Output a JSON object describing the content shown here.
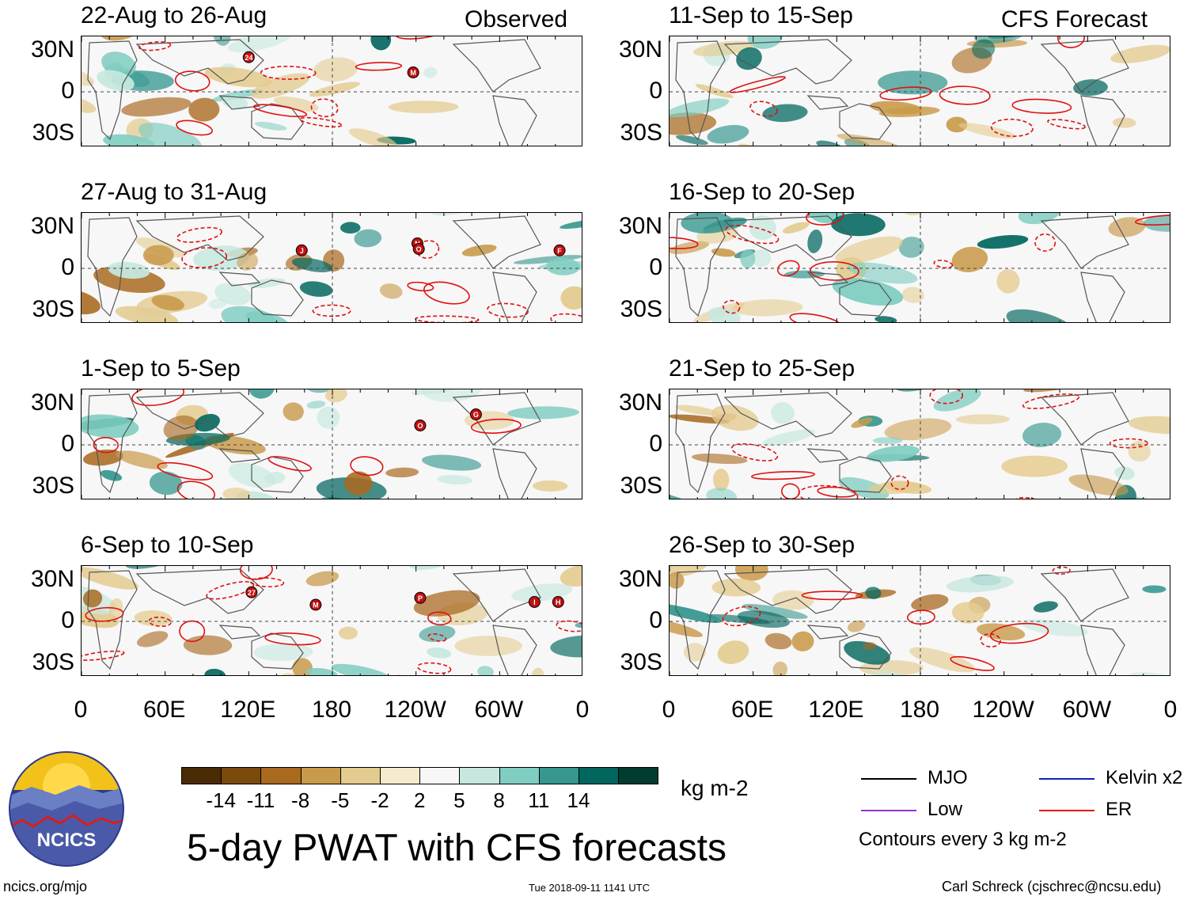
{
  "chart_data": {
    "type": "heatmap",
    "title": "5-day PWAT with CFS forecasts",
    "units": "kg m-2",
    "colorbar": {
      "ticks": [
        "-14",
        "-11",
        "-8",
        "-5",
        "-2",
        "2",
        "5",
        "8",
        "11",
        "14"
      ],
      "colors": [
        "#4a2b05",
        "#7a4a0c",
        "#a9691f",
        "#c99a4b",
        "#e4cb8f",
        "#f6ebcd",
        "#f7f7f7",
        "#c6e8df",
        "#80cdc1",
        "#35978f",
        "#01665e",
        "#003c30"
      ]
    },
    "lat_labels": [
      "30N",
      "0",
      "30S"
    ],
    "lon_labels": [
      "0",
      "60E",
      "120E",
      "180",
      "120W",
      "60W",
      "0"
    ],
    "headers": {
      "left": "Observed",
      "right": "CFS Forecast"
    },
    "panels": [
      {
        "id": "obs-1",
        "column": "observed",
        "title": "22-Aug to 26-Aug",
        "storms": [
          {
            "label": "24",
            "lon": 120,
            "lat": 25
          },
          {
            "label": "M",
            "lon": 238,
            "lat": 14
          }
        ]
      },
      {
        "id": "obs-2",
        "column": "observed",
        "title": "27-Aug to 31-Aug",
        "storms": [
          {
            "label": "J",
            "lon": 158,
            "lat": 13
          },
          {
            "label": "N",
            "lon": 241,
            "lat": 18
          },
          {
            "label": "O",
            "lon": 242,
            "lat": 14
          },
          {
            "label": "F",
            "lon": 343,
            "lat": 13
          }
        ]
      },
      {
        "id": "obs-3",
        "column": "observed",
        "title": "1-Sep to 5-Sep",
        "storms": [
          {
            "label": "O",
            "lon": 243,
            "lat": 14
          },
          {
            "label": "G",
            "lon": 283,
            "lat": 22
          }
        ]
      },
      {
        "id": "obs-4",
        "column": "observed",
        "title": "6-Sep to 10-Sep",
        "storms": [
          {
            "label": "27",
            "lon": 122,
            "lat": 21
          },
          {
            "label": "M",
            "lon": 168,
            "lat": 12
          },
          {
            "label": "P",
            "lon": 243,
            "lat": 17
          },
          {
            "label": "I",
            "lon": 325,
            "lat": 14
          },
          {
            "label": "H",
            "lon": 342,
            "lat": 14
          }
        ]
      },
      {
        "id": "fcst-1",
        "column": "forecast",
        "title": "11-Sep to 15-Sep",
        "storms": []
      },
      {
        "id": "fcst-2",
        "column": "forecast",
        "title": "16-Sep to 20-Sep",
        "storms": []
      },
      {
        "id": "fcst-3",
        "column": "forecast",
        "title": "21-Sep to 25-Sep",
        "storms": []
      },
      {
        "id": "fcst-4",
        "column": "forecast",
        "title": "26-Sep to 30-Sep",
        "storms": []
      }
    ],
    "legend": {
      "items": [
        {
          "name": "MJO",
          "color": "#000000"
        },
        {
          "name": "Low",
          "color": "#9b30d9"
        },
        {
          "name": "Kelvin x2",
          "color": "#1020c0"
        },
        {
          "name": "ER",
          "color": "#e01010"
        }
      ],
      "note": "Contours every 3 kg m-2"
    }
  },
  "logo": {
    "text": "NCICS"
  },
  "footer": {
    "url": "ncics.org/mjo",
    "timestamp": "Tue 2018-09-11 1141 UTC",
    "credit": "Carl Schreck (cjschrec@ncsu.edu)"
  }
}
